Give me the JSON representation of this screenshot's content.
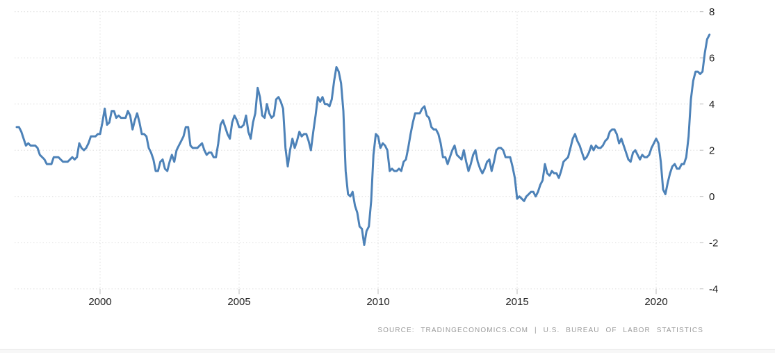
{
  "chart_data": {
    "type": "line",
    "title": "",
    "frequency": "monthly",
    "start_year": 1997,
    "end_label": "Dec 2021",
    "x_ticks": [
      2000,
      2005,
      2010,
      2015,
      2020
    ],
    "y_ticks": [
      8,
      6,
      4,
      2,
      0,
      -2,
      -4
    ],
    "ylim": [
      -4,
      8
    ],
    "grid": "dotted",
    "legend": "none",
    "line_color": "#4d82b8",
    "grid_color": "#dedede",
    "tick_color": "#bbbbbb",
    "axis_label_color": "#222222",
    "values": [
      3.0,
      3.0,
      2.8,
      2.5,
      2.2,
      2.3,
      2.2,
      2.2,
      2.2,
      2.1,
      1.8,
      1.7,
      1.6,
      1.4,
      1.4,
      1.4,
      1.7,
      1.7,
      1.7,
      1.6,
      1.5,
      1.5,
      1.5,
      1.6,
      1.7,
      1.6,
      1.7,
      2.3,
      2.1,
      2.0,
      2.1,
      2.3,
      2.6,
      2.6,
      2.6,
      2.7,
      2.7,
      3.2,
      3.8,
      3.1,
      3.2,
      3.7,
      3.7,
      3.4,
      3.5,
      3.4,
      3.4,
      3.4,
      3.7,
      3.5,
      2.9,
      3.3,
      3.6,
      3.2,
      2.7,
      2.7,
      2.6,
      2.1,
      1.9,
      1.6,
      1.1,
      1.1,
      1.5,
      1.6,
      1.2,
      1.1,
      1.5,
      1.8,
      1.5,
      2.0,
      2.2,
      2.4,
      2.6,
      3.0,
      3.0,
      2.2,
      2.1,
      2.1,
      2.1,
      2.2,
      2.3,
      2.0,
      1.8,
      1.9,
      1.9,
      1.7,
      1.7,
      2.3,
      3.1,
      3.3,
      3.0,
      2.7,
      2.5,
      3.2,
      3.5,
      3.3,
      3.0,
      3.0,
      3.1,
      3.5,
      2.8,
      2.5,
      3.2,
      3.6,
      4.7,
      4.3,
      3.5,
      3.4,
      4.0,
      3.6,
      3.4,
      3.5,
      4.2,
      4.3,
      4.1,
      3.8,
      2.1,
      1.3,
      2.0,
      2.5,
      2.1,
      2.4,
      2.8,
      2.6,
      2.7,
      2.7,
      2.4,
      2.0,
      2.8,
      3.5,
      4.3,
      4.1,
      4.3,
      4.0,
      4.0,
      3.9,
      4.2,
      5.0,
      5.6,
      5.4,
      4.9,
      3.7,
      1.1,
      0.1,
      0.0,
      0.2,
      -0.4,
      -0.7,
      -1.3,
      -1.4,
      -2.1,
      -1.5,
      -1.3,
      -0.2,
      1.8,
      2.7,
      2.6,
      2.1,
      2.3,
      2.2,
      2.0,
      1.1,
      1.2,
      1.1,
      1.1,
      1.2,
      1.1,
      1.5,
      1.6,
      2.1,
      2.7,
      3.2,
      3.6,
      3.6,
      3.6,
      3.8,
      3.9,
      3.5,
      3.4,
      3.0,
      2.9,
      2.9,
      2.7,
      2.3,
      1.7,
      1.7,
      1.4,
      1.7,
      2.0,
      2.2,
      1.8,
      1.7,
      1.6,
      2.0,
      1.5,
      1.1,
      1.4,
      1.8,
      2.0,
      1.5,
      1.2,
      1.0,
      1.2,
      1.5,
      1.6,
      1.1,
      1.5,
      2.0,
      2.1,
      2.1,
      2.0,
      1.7,
      1.7,
      1.7,
      1.3,
      0.8,
      -0.1,
      0.0,
      -0.1,
      -0.2,
      0.0,
      0.1,
      0.2,
      0.2,
      0.0,
      0.2,
      0.5,
      0.7,
      1.4,
      1.0,
      0.9,
      1.1,
      1.0,
      1.0,
      0.8,
      1.1,
      1.5,
      1.6,
      1.7,
      2.1,
      2.5,
      2.7,
      2.4,
      2.2,
      1.9,
      1.6,
      1.7,
      1.9,
      2.2,
      2.0,
      2.2,
      2.1,
      2.1,
      2.2,
      2.4,
      2.5,
      2.8,
      2.9,
      2.9,
      2.7,
      2.3,
      2.5,
      2.2,
      1.9,
      1.6,
      1.5,
      1.9,
      2.0,
      1.8,
      1.6,
      1.8,
      1.7,
      1.7,
      1.8,
      2.1,
      2.3,
      2.5,
      2.3,
      1.5,
      0.3,
      0.1,
      0.6,
      1.0,
      1.3,
      1.4,
      1.2,
      1.2,
      1.4,
      1.4,
      1.7,
      2.6,
      4.2,
      5.0,
      5.4,
      5.4,
      5.3,
      5.4,
      6.2,
      6.8,
      7.0
    ]
  },
  "source": {
    "text": "SOURCE: TRADINGECONOMICS.COM | U.S. BUREAU OF LABOR STATISTICS"
  }
}
